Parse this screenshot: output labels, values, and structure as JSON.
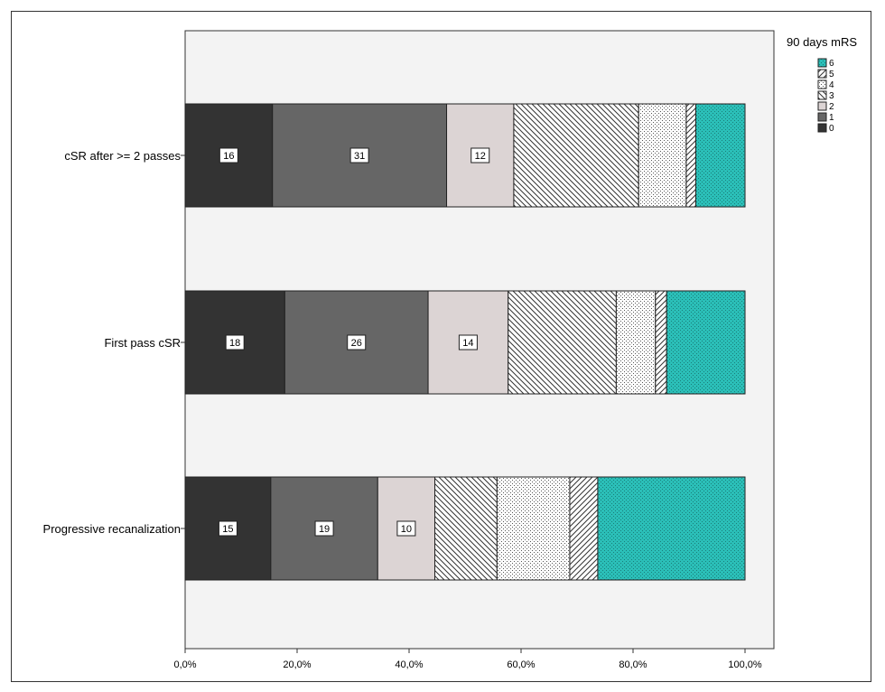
{
  "chart_data": {
    "type": "bar",
    "orientation": "horizontal",
    "stacked": "percent",
    "title": "",
    "xlabel": "",
    "ylabel": "",
    "xlim": [
      0,
      100
    ],
    "x_ticks": [
      "0,0%",
      "20,0%",
      "40,0%",
      "60,0%",
      "80,0%",
      "100,0%"
    ],
    "categories": [
      "cSR after >= 2 passes",
      "First pass cSR",
      "Progressive recanalization"
    ],
    "legend": {
      "title": "90 days mRS",
      "position": "top-right"
    },
    "series": [
      {
        "name": "0",
        "color": "#333333",
        "pattern": "solid",
        "values": [
          15.6,
          17.8,
          15.3
        ],
        "labels": [
          "16",
          "18",
          "15"
        ]
      },
      {
        "name": "1",
        "color": "#666666",
        "pattern": "solid",
        "values": [
          31.1,
          25.6,
          19.1
        ],
        "labels": [
          "31",
          "26",
          "19"
        ]
      },
      {
        "name": "2",
        "color": "#dcd4d4",
        "pattern": "solid",
        "values": [
          12.0,
          14.3,
          10.2
        ],
        "labels": [
          "12",
          "14",
          "10"
        ]
      },
      {
        "name": "3",
        "color": "#ffffff",
        "pattern": "diag-back",
        "values": [
          22.3,
          19.3,
          11.1
        ],
        "labels": [
          "",
          "",
          ""
        ]
      },
      {
        "name": "4",
        "color": "#ffffff",
        "pattern": "dots",
        "values": [
          8.5,
          7.0,
          13.0
        ],
        "labels": [
          "",
          "",
          ""
        ]
      },
      {
        "name": "5",
        "color": "#ffffff",
        "pattern": "diag-fwd",
        "values": [
          1.7,
          2.0,
          5.0
        ],
        "labels": [
          "",
          "",
          ""
        ]
      },
      {
        "name": "6",
        "color": "#2bbfb8",
        "pattern": "cross",
        "values": [
          8.8,
          14.0,
          26.3
        ],
        "labels": [
          "",
          "",
          ""
        ]
      }
    ]
  }
}
